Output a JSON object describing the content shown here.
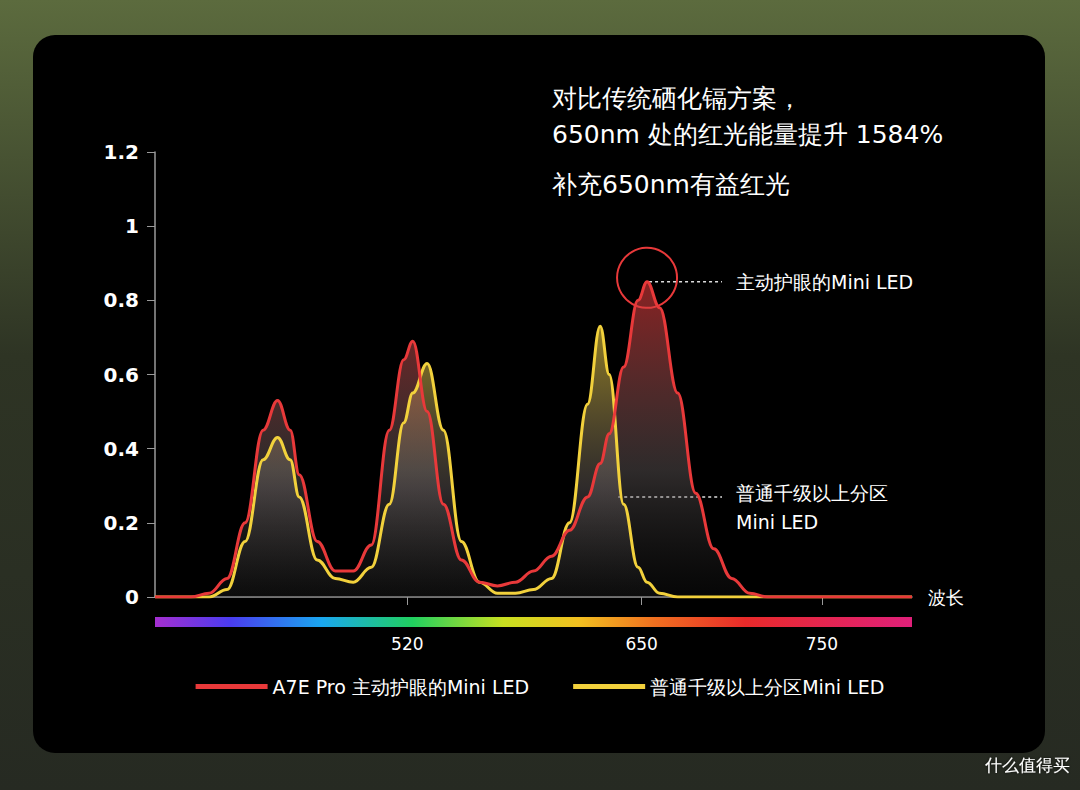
{
  "chart_data": {
    "type": "line",
    "title": [
      "对比传统硒化镉方案，",
      "650nm 处的红光能量提升 1584%"
    ],
    "subtitle": "补充650nm有益红光",
    "xlabel": "波长",
    "x": [
      380,
      390,
      400,
      410,
      420,
      430,
      440,
      448,
      455,
      460,
      470,
      480,
      490,
      500,
      510,
      518,
      523,
      531,
      540,
      550,
      560,
      570,
      580,
      590,
      600,
      610,
      620,
      627,
      632,
      640,
      648,
      653,
      660,
      670,
      680,
      690,
      700,
      710,
      720,
      740,
      760,
      780,
      800
    ],
    "xlim": [
      380,
      800
    ],
    "xticks": [
      520,
      650,
      750
    ],
    "ylim": [
      0,
      1.2
    ],
    "yticks": [
      0,
      0.2,
      0.4,
      0.6,
      0.8,
      1,
      1.2
    ],
    "grid": false,
    "legend": "bottom",
    "series": [
      {
        "name": "普通千级以上分区Mini LED",
        "color": "#f2d13c",
        "values": [
          0,
          0,
          0,
          0,
          0.02,
          0.15,
          0.37,
          0.43,
          0.37,
          0.27,
          0.1,
          0.05,
          0.04,
          0.08,
          0.25,
          0.47,
          0.55,
          0.63,
          0.45,
          0.15,
          0.04,
          0.01,
          0.01,
          0.02,
          0.05,
          0.2,
          0.52,
          0.73,
          0.6,
          0.25,
          0.08,
          0.04,
          0.01,
          0,
          0,
          0,
          0,
          0,
          0,
          0,
          0,
          0,
          0
        ]
      },
      {
        "name": "A7E Pro 主动护眼的Mini LED",
        "color": "#e8393a",
        "values": [
          0,
          0,
          0,
          0.01,
          0.05,
          0.2,
          0.45,
          0.53,
          0.45,
          0.33,
          0.15,
          0.07,
          0.07,
          0.14,
          0.45,
          0.64,
          0.69,
          0.5,
          0.25,
          0.1,
          0.04,
          0.03,
          0.04,
          0.07,
          0.11,
          0.18,
          0.27,
          0.36,
          0.44,
          0.62,
          0.8,
          0.85,
          0.78,
          0.55,
          0.28,
          0.13,
          0.05,
          0.01,
          0,
          0,
          0,
          0,
          0
        ]
      }
    ],
    "annotations": [
      {
        "text": [
          "主动护眼的Mini LED"
        ],
        "x": 653,
        "y": 0.85,
        "color": "#e8393a"
      },
      {
        "text": [
          "普通千级以上分区",
          "Mini LED"
        ],
        "x": 637,
        "y": 0.27,
        "color": "#ffffff"
      }
    ],
    "watermark": "什么值得买"
  }
}
